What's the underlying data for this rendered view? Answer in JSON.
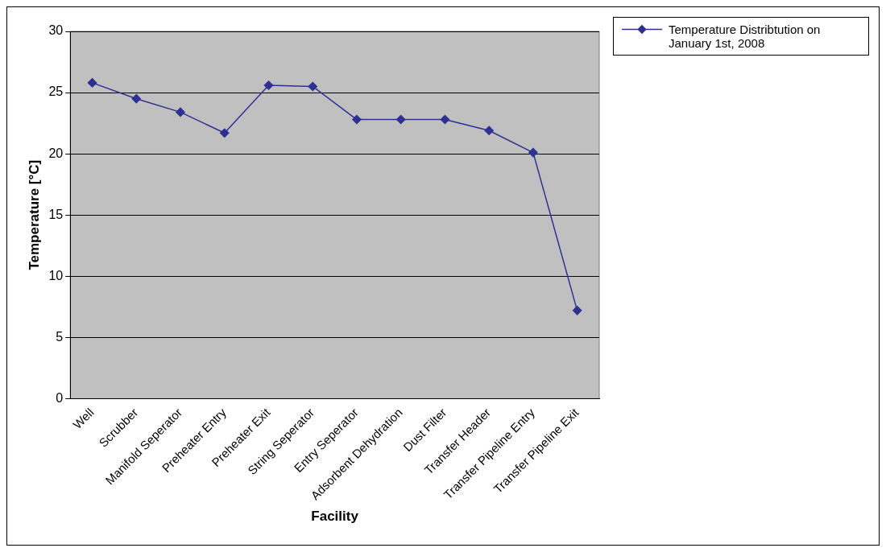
{
  "chart_data": {
    "type": "line",
    "xlabel": "Facility",
    "ylabel": "Temperature [°C]",
    "categories": [
      "Well",
      "Scrubber",
      "Manifold Seperator",
      "Preheater Entry",
      "Preheater Exit",
      "String Seperator",
      "Entry Seperator",
      "Adsorbent Dehydration",
      "Dust Filter",
      "Transfer Header",
      "Transfer Pipeline Entry",
      "Transfer Pipeline Exit"
    ],
    "series": [
      {
        "name": "Temperature Distribtution on January 1st, 2008",
        "color": "#2e3192",
        "values": [
          25.8,
          24.5,
          23.4,
          21.7,
          25.6,
          25.5,
          22.8,
          22.8,
          22.8,
          21.9,
          20.1,
          7.2
        ]
      }
    ],
    "ylim": [
      0,
      30
    ],
    "yticks": [
      0,
      5,
      10,
      15,
      20,
      25,
      30
    ],
    "grid": "y",
    "legend": "top right",
    "marker": "diamond",
    "line_style": "solid"
  }
}
